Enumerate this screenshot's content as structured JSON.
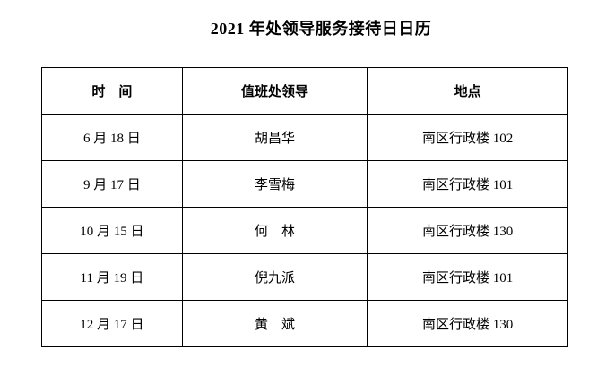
{
  "title": "2021 年处领导服务接待日日历",
  "table": {
    "headers": [
      "时　间",
      "值班处领导",
      "地点"
    ],
    "rows": [
      [
        "6 月 18 日",
        "胡昌华",
        "南区行政楼 102"
      ],
      [
        "9 月 17 日",
        "李雪梅",
        "南区行政楼 101"
      ],
      [
        "10 月 15 日",
        "何　林",
        "南区行政楼 130"
      ],
      [
        "11 月 19 日",
        "倪九派",
        "南区行政楼 101"
      ],
      [
        "12 月 17 日",
        "黄　斌",
        "南区行政楼 130"
      ]
    ]
  }
}
